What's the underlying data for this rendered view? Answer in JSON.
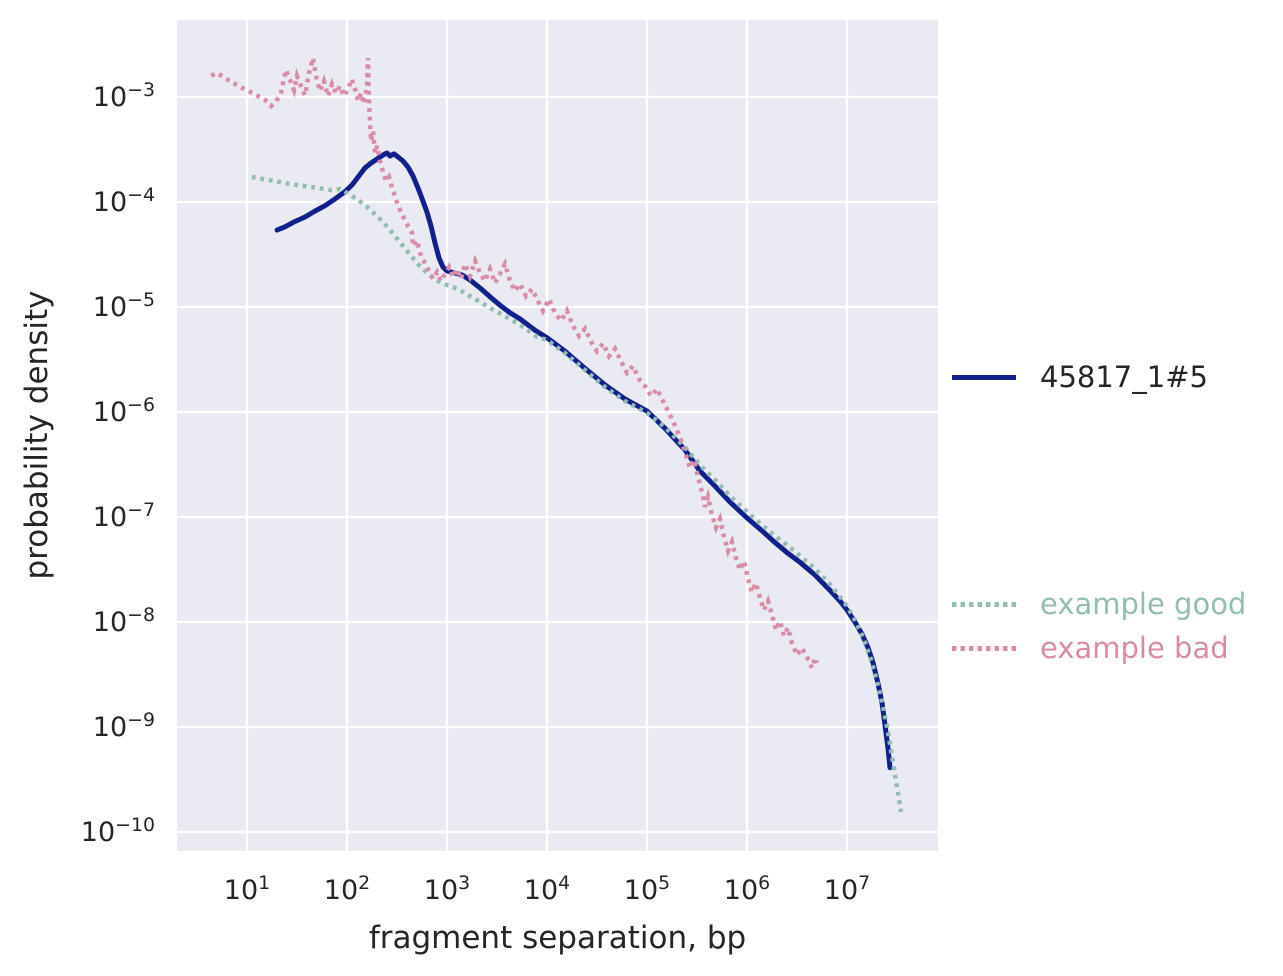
{
  "chart_data": {
    "type": "line",
    "title": "",
    "xlabel": "fragment separation, bp",
    "ylabel": "probability density",
    "x_scale": "log",
    "y_scale": "log",
    "xlim": [
      2,
      81000000
    ],
    "ylim": [
      6.6e-11,
      0.0054
    ],
    "x_tick_exponents": [
      1,
      2,
      3,
      4,
      5,
      6,
      7
    ],
    "y_tick_exponents": [
      -3,
      -4,
      -5,
      -6,
      -7,
      -8,
      -9,
      -10
    ],
    "grid": true,
    "plot_background": "#eaeaf2",
    "grid_color": "#ffffff",
    "text_color": "#262626",
    "legend_position": "right-outside",
    "series": [
      {
        "name": "45817_1#5",
        "color": "#11208d",
        "style": "solid",
        "label_color": "#262626",
        "points": [
          [
            20,
            5.4e-05
          ],
          [
            24,
            5.8e-05
          ],
          [
            30,
            6.5e-05
          ],
          [
            38,
            7.2e-05
          ],
          [
            48,
            8.2e-05
          ],
          [
            60,
            9.2e-05
          ],
          [
            76,
            0.000107
          ],
          [
            95,
            0.000125
          ],
          [
            112,
            0.000145
          ],
          [
            129,
            0.000173
          ],
          [
            151,
            0.000211
          ],
          [
            174,
            0.000235
          ],
          [
            200,
            0.000257
          ],
          [
            229,
            0.00028
          ],
          [
            251,
            0.000293
          ],
          [
            269,
            0.000274
          ],
          [
            295,
            0.000287
          ],
          [
            324,
            0.000268
          ],
          [
            363,
            0.000246
          ],
          [
            407,
            0.000215
          ],
          [
            457,
            0.000177
          ],
          [
            513,
            0.000136
          ],
          [
            575,
            0.000102
          ],
          [
            631,
            8e-05
          ],
          [
            692,
            5.9e-05
          ],
          [
            759,
            4.07e-05
          ],
          [
            832,
            2.93e-05
          ],
          [
            912,
            2.4e-05
          ],
          [
            1000,
            2.2e-05
          ],
          [
            1200,
            2.11e-05
          ],
          [
            1410,
            2.02e-05
          ],
          [
            1700,
            1.81e-05
          ],
          [
            2140,
            1.52e-05
          ],
          [
            2690,
            1.25e-05
          ],
          [
            3390,
            1.04e-05
          ],
          [
            4270,
            8.8e-06
          ],
          [
            5370,
            7.7e-06
          ],
          [
            7590,
            6e-06
          ],
          [
            10000,
            5.1e-06
          ],
          [
            15100,
            3.8e-06
          ],
          [
            24000,
            2.6e-06
          ],
          [
            38000,
            1.81e-06
          ],
          [
            60300,
            1.33e-06
          ],
          [
            100000,
            1.02e-06
          ],
          [
            151000,
            7e-07
          ],
          [
            240000,
            4.35e-07
          ],
          [
            339000,
            2.74e-07
          ],
          [
            479000,
            1.97e-07
          ],
          [
            676000,
            1.39e-07
          ],
          [
            1000000.0,
            9.8e-08
          ],
          [
            1410000.0,
            7.4e-08
          ],
          [
            1910000.0,
            5.7e-08
          ],
          [
            2570000.0,
            4.5e-08
          ],
          [
            3390000.0,
            3.7e-08
          ],
          [
            4790000.0,
            2.8e-08
          ],
          [
            6760000.0,
            2e-08
          ],
          [
            8510000.0,
            1.58e-08
          ],
          [
            10000000.0,
            1.3e-08
          ],
          [
            12000000.0,
            1e-08
          ],
          [
            14100000.0,
            7.7e-09
          ],
          [
            16200000.0,
            5.7e-09
          ],
          [
            18200000.0,
            4.1e-09
          ],
          [
            20400000.0,
            2.6e-09
          ],
          [
            22400000.0,
            1.7e-09
          ],
          [
            24000000.0,
            1.04e-09
          ],
          [
            25700000.0,
            6.3e-10
          ],
          [
            26900000.0,
            4.1e-10
          ]
        ]
      },
      {
        "name": "example good",
        "color": "#92bcb4",
        "style": "dotted",
        "label_color": "#92bcb4",
        "points": [
          [
            11.2,
            0.000173
          ],
          [
            14.1,
            0.000166
          ],
          [
            19,
            0.000158
          ],
          [
            27,
            0.000148
          ],
          [
            38,
            0.000142
          ],
          [
            51,
            0.000136
          ],
          [
            68,
            0.00013
          ],
          [
            85,
            0.000133
          ],
          [
            100,
            0.000122
          ],
          [
            129,
            0.000105
          ],
          [
            162,
            8.8e-05
          ],
          [
            204,
            7.2e-05
          ],
          [
            257,
            5.7e-05
          ],
          [
            324,
            4.35e-05
          ],
          [
            407,
            3.34e-05
          ],
          [
            513,
            2.57e-05
          ],
          [
            646,
            2.06e-05
          ],
          [
            813,
            1.77e-05
          ],
          [
            1000,
            1.62e-05
          ],
          [
            1290,
            1.48e-05
          ],
          [
            1700,
            1.27e-05
          ],
          [
            2240,
            1.09e-05
          ],
          [
            3020,
            9.2e-06
          ],
          [
            4270,
            7.7e-06
          ],
          [
            6030,
            6.3e-06
          ],
          [
            7940,
            5.2e-06
          ],
          [
            10000,
            4.85e-06
          ],
          [
            15100,
            3.65e-06
          ],
          [
            24000,
            2.51e-06
          ],
          [
            38000,
            1.73e-06
          ],
          [
            60300,
            1.27e-06
          ],
          [
            100000,
            9.8e-07
          ],
          [
            151000,
            7.2e-07
          ],
          [
            240000,
            4.6e-07
          ],
          [
            339000,
            3.13e-07
          ],
          [
            479000,
            2.25e-07
          ],
          [
            676000,
            1.58e-07
          ],
          [
            1000000.0,
            1.12e-07
          ],
          [
            1410000.0,
            8.4e-08
          ],
          [
            2040000.0,
            6.3e-08
          ],
          [
            3020000.0,
            4.7e-08
          ],
          [
            4570000.0,
            3.34e-08
          ],
          [
            6610000.0,
            2.35e-08
          ],
          [
            8510000.0,
            1.73e-08
          ],
          [
            10000000.0,
            1.42e-08
          ],
          [
            12300000.0,
            1e-08
          ],
          [
            14800000.0,
            6.8e-09
          ],
          [
            17400000.0,
            4.35e-09
          ],
          [
            20000000.0,
            2.7e-09
          ],
          [
            22900000.0,
            1.58e-09
          ],
          [
            25700000.0,
            9e-10
          ],
          [
            28800000.0,
            4.6e-10
          ],
          [
            31600000.0,
            2.7e-10
          ],
          [
            34700000.0,
            1.55e-10
          ]
        ]
      },
      {
        "name": "example bad",
        "color": "#d98ca8",
        "style": "dotted",
        "label_color": "#d98ca8",
        "points": [
          [
            4.4,
            0.00159
          ],
          [
            4.9,
            0.00169
          ],
          [
            5.6,
            0.00159
          ],
          [
            6.5,
            0.00145
          ],
          [
            7.6,
            0.00133
          ],
          [
            8.9,
            0.00122
          ],
          [
            10.7,
            0.00112
          ],
          [
            12.9,
            0.00102
          ],
          [
            15.1,
            0.00094
          ],
          [
            17.4,
            0.00082
          ],
          [
            19.5,
            0.0009
          ],
          [
            21.9,
            0.00109
          ],
          [
            24.5,
            0.00181
          ],
          [
            27,
            0.00145
          ],
          [
            29.5,
            0.00116
          ],
          [
            31.6,
            0.00159
          ],
          [
            34.7,
            0.00127
          ],
          [
            38,
            0.00104
          ],
          [
            41.7,
            0.00169
          ],
          [
            45.7,
            0.00235
          ],
          [
            49,
            0.00159
          ],
          [
            53.7,
            0.00114
          ],
          [
            58.9,
            0.00142
          ],
          [
            64.6,
            0.00102
          ],
          [
            70.8,
            0.00133
          ],
          [
            77.6,
            0.00109
          ],
          [
            85.1,
            0.00127
          ],
          [
            93.3,
            0.00102
          ],
          [
            102,
            0.00119
          ],
          [
            112,
            0.00148
          ],
          [
            122,
            0.00114
          ],
          [
            129,
            0.00092
          ],
          [
            138,
            0.00109
          ],
          [
            148,
            0.00086
          ],
          [
            158,
            0.00125
          ],
          [
            162,
            0.00235
          ],
          [
            166,
            0.00094
          ],
          [
            170,
            0.00057
          ],
          [
            174,
            0.00038
          ],
          [
            182,
            0.00047
          ],
          [
            191,
            0.000293
          ],
          [
            200,
            0.000342
          ],
          [
            214,
            0.000246
          ],
          [
            229,
            0.000193
          ],
          [
            245,
            0.000158
          ],
          [
            263,
            0.000173
          ],
          [
            282,
            0.000136
          ],
          [
            302,
            0.000114
          ],
          [
            324,
            9.2e-05
          ],
          [
            363,
            7.3e-05
          ],
          [
            407,
            5.9e-05
          ],
          [
            447,
            5.1e-05
          ],
          [
            457,
            3.8e-05
          ],
          [
            501,
            4.3e-05
          ],
          [
            549,
            3.06e-05
          ],
          [
            603,
            2.62e-05
          ],
          [
            661,
            2.2e-05
          ],
          [
            724,
            1.85e-05
          ],
          [
            794,
            2.15e-05
          ],
          [
            871,
            1.77e-05
          ],
          [
            955,
            2.06e-05
          ],
          [
            1050,
            2.4e-05
          ],
          [
            1150,
            1.93e-05
          ],
          [
            1260,
            2.3e-05
          ],
          [
            1380,
            1.85e-05
          ],
          [
            1510,
            2.57e-05
          ],
          [
            1700,
            1.97e-05
          ],
          [
            1910,
            2.74e-05
          ],
          [
            2140,
            2.11e-05
          ],
          [
            2400,
            1.77e-05
          ],
          [
            2690,
            2.3e-05
          ],
          [
            3020,
            1.69e-05
          ],
          [
            3390,
            2.06e-05
          ],
          [
            3800,
            2.57e-05
          ],
          [
            4270,
            1.77e-05
          ],
          [
            4790,
            1.42e-05
          ],
          [
            5370,
            1.66e-05
          ],
          [
            6170,
            1.27e-05
          ],
          [
            7080,
            1.48e-05
          ],
          [
            8130,
            1.14e-05
          ],
          [
            9120,
            9.2e-06
          ],
          [
            10500,
            1.19e-05
          ],
          [
            12000,
            8.8e-06
          ],
          [
            13800,
            7.4e-06
          ],
          [
            15800,
            9.2e-06
          ],
          [
            18200,
            6.6e-06
          ],
          [
            20900,
            5.3e-06
          ],
          [
            24000,
            6.2e-06
          ],
          [
            27500,
            4.7e-06
          ],
          [
            31600,
            3.8e-06
          ],
          [
            36300,
            4.5e-06
          ],
          [
            41700,
            3.4e-06
          ],
          [
            47900,
            4e-06
          ],
          [
            55000,
            3.06e-06
          ],
          [
            63100,
            2.35e-06
          ],
          [
            72400,
            2.74e-06
          ],
          [
            83200,
            2.06e-06
          ],
          [
            95500,
            1.77e-06
          ],
          [
            110000,
            1.42e-06
          ],
          [
            126000,
            1.66e-06
          ],
          [
            145000,
            1.27e-06
          ],
          [
            166000,
            9.8e-07
          ],
          [
            191000,
            7.4e-07
          ],
          [
            219000,
            5.4e-07
          ],
          [
            245000,
            3.9e-07
          ],
          [
            269000,
            2.93e-07
          ],
          [
            295000,
            3.49e-07
          ],
          [
            324000,
            2.4e-07
          ],
          [
            355000,
            1.73e-07
          ],
          [
            380000,
            1.25e-07
          ],
          [
            407000,
            1.55e-07
          ],
          [
            447000,
            1.04e-07
          ],
          [
            490000,
            7.9e-08
          ],
          [
            537000,
            9.6e-08
          ],
          [
            589000,
            6.45e-08
          ],
          [
            646000,
            4.74e-08
          ],
          [
            708000,
            5.8e-08
          ],
          [
            776000,
            4.07e-08
          ],
          [
            851000,
            3.13e-08
          ],
          [
            933000,
            3.8e-08
          ],
          [
            1020000.0,
            2.62e-08
          ],
          [
            1120000.0,
            1.93e-08
          ],
          [
            1230000.0,
            2.35e-08
          ],
          [
            1350000.0,
            1.69e-08
          ],
          [
            1480000.0,
            1.3e-08
          ],
          [
            1620000.0,
            1.58e-08
          ],
          [
            1780000.0,
            1.17e-08
          ],
          [
            1950000.0,
            8.4e-09
          ],
          [
            2140000.0,
            1.02e-08
          ],
          [
            2340000.0,
            7.4e-09
          ],
          [
            2570000.0,
            8.8e-09
          ],
          [
            2820000.0,
            6.3e-09
          ],
          [
            3160000.0,
            4.85e-09
          ],
          [
            3550000.0,
            5.65e-09
          ],
          [
            3980000.0,
            4.64e-09
          ],
          [
            4470000.0,
            3.65e-09
          ],
          [
            4790000.0,
            4.54e-09
          ],
          [
            5010000.0,
            4.07e-09
          ]
        ]
      }
    ]
  }
}
